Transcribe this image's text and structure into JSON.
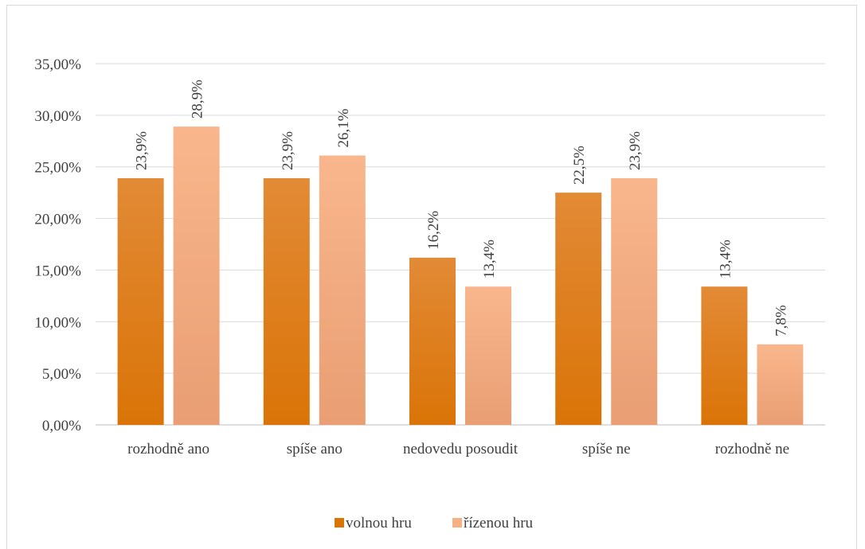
{
  "chart_data": {
    "type": "bar",
    "categories": [
      "rozhodně ano",
      "spíše ano",
      "nedovedu posoudit",
      "spíše ne",
      "rozhodně ne"
    ],
    "series": [
      {
        "name": "volnou hru",
        "values": [
          23.9,
          23.9,
          16.2,
          22.5,
          13.4
        ],
        "labels": [
          "23,9%",
          "23,9%",
          "16,2%",
          "22,5%",
          "13,4%"
        ],
        "color": "#E07D14"
      },
      {
        "name": "řízenou hru",
        "values": [
          28.9,
          26.1,
          13.4,
          23.9,
          7.8
        ],
        "labels": [
          "28,9%",
          "26,1%",
          "13,4%",
          "23,9%",
          "7,8%"
        ],
        "color": "#F5B183"
      }
    ],
    "ylim": [
      0,
      35
    ],
    "yticks": [
      "0,00%",
      "5,00%",
      "10,00%",
      "15,00%",
      "20,00%",
      "25,00%",
      "30,00%",
      "35,00%"
    ],
    "grid": true,
    "legend": "bottom-center"
  }
}
